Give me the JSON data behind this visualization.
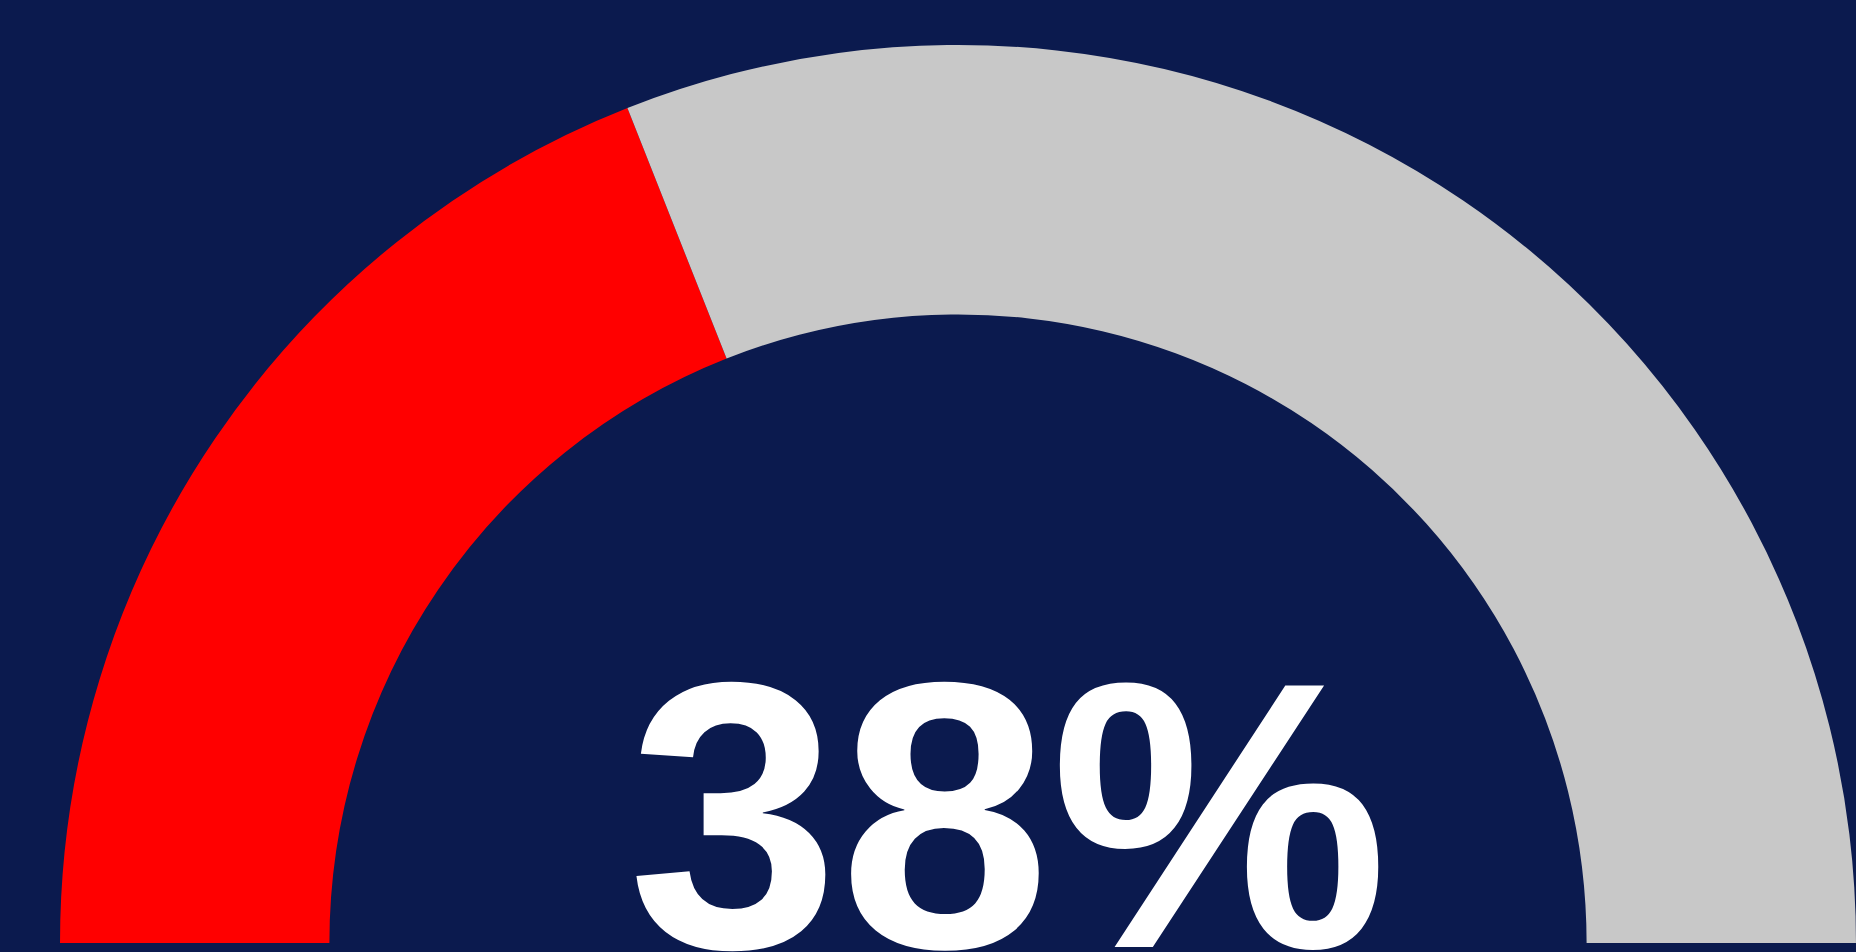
{
  "chart_data": {
    "type": "donut",
    "categories": [
      null,
      null
    ],
    "values": [
      38,
      62
    ],
    "colors": [
      "#ff0000",
      "#c8c8c8"
    ],
    "annotations": [
      "38%"
    ],
    "legend": false
  }
}
